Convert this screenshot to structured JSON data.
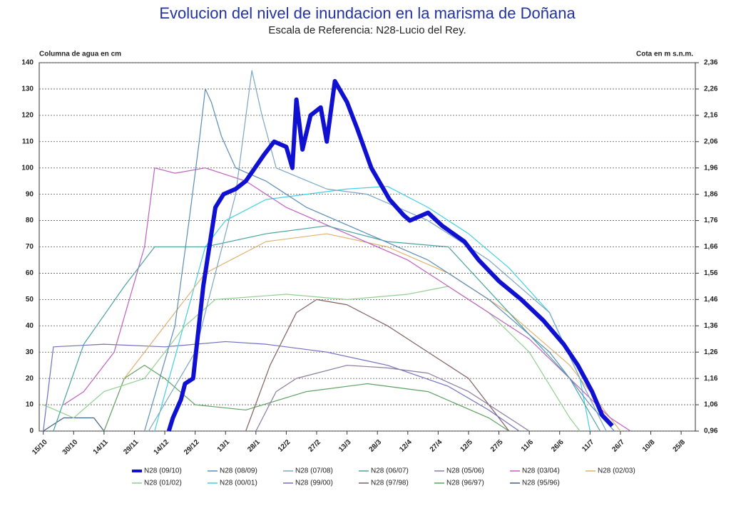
{
  "chart_data": {
    "type": "line",
    "title": "Evolucion del nivel de inundacion en la marisma de Doñana",
    "subtitle": "Escala de Referencia: N28-Lucio del Rey.",
    "ylabel": "Columna de agua en cm",
    "y2label": "Cota en m s.n.m.",
    "xlim": [
      -2,
      322
    ],
    "ylim": [
      0,
      140
    ],
    "y2lim": [
      0.96,
      2.36
    ],
    "grid": true,
    "xticks": [
      {
        "value": 0,
        "label": "15/10"
      },
      {
        "value": 15,
        "label": "30/10"
      },
      {
        "value": 30,
        "label": "14/11"
      },
      {
        "value": 45,
        "label": "29/11"
      },
      {
        "value": 60,
        "label": "14/12"
      },
      {
        "value": 75,
        "label": "29/12"
      },
      {
        "value": 90,
        "label": "13/1"
      },
      {
        "value": 105,
        "label": "28/1"
      },
      {
        "value": 120,
        "label": "12/2"
      },
      {
        "value": 135,
        "label": "27/2"
      },
      {
        "value": 150,
        "label": "13/3"
      },
      {
        "value": 165,
        "label": "28/3"
      },
      {
        "value": 180,
        "label": "12/4"
      },
      {
        "value": 195,
        "label": "27/4"
      },
      {
        "value": 210,
        "label": "12/5"
      },
      {
        "value": 225,
        "label": "27/5"
      },
      {
        "value": 240,
        "label": "11/6"
      },
      {
        "value": 255,
        "label": "26/6"
      },
      {
        "value": 270,
        "label": "11/7"
      },
      {
        "value": 285,
        "label": "26/7"
      },
      {
        "value": 300,
        "label": "10/8"
      },
      {
        "value": 315,
        "label": "25/8"
      }
    ],
    "yticks": [
      0,
      10,
      20,
      30,
      40,
      50,
      60,
      70,
      80,
      90,
      100,
      110,
      120,
      130,
      140
    ],
    "y2ticks": [
      {
        "value": 0.96,
        "label": "0,96"
      },
      {
        "value": 1.06,
        "label": "1,06"
      },
      {
        "value": 1.16,
        "label": "1,16"
      },
      {
        "value": 1.26,
        "label": "1,26"
      },
      {
        "value": 1.36,
        "label": "1,36"
      },
      {
        "value": 1.46,
        "label": "1,46"
      },
      {
        "value": 1.56,
        "label": "1,56"
      },
      {
        "value": 1.66,
        "label": "1,66"
      },
      {
        "value": 1.76,
        "label": "1,76"
      },
      {
        "value": 1.86,
        "label": "1,86"
      },
      {
        "value": 1.96,
        "label": "1,96"
      },
      {
        "value": 2.06,
        "label": "2,06"
      },
      {
        "value": 2.16,
        "label": "2,16"
      },
      {
        "value": 2.26,
        "label": "2,26"
      },
      {
        "value": 2.36,
        "label": "2,36"
      }
    ],
    "series": [
      {
        "name": "N28 (09/10)",
        "color": "#1010d0",
        "x": [
          62,
          64,
          68,
          70,
          74,
          79,
          85,
          89,
          95,
          100,
          109,
          114,
          120,
          123,
          125,
          128,
          132,
          137,
          140,
          144,
          150,
          155,
          162,
          171,
          178,
          181,
          190,
          197,
          208,
          215,
          225,
          236,
          247,
          257,
          264,
          271,
          276,
          281
        ],
        "values": [
          0,
          5,
          12,
          18,
          20,
          55,
          85,
          90,
          92,
          95,
          105,
          110,
          108,
          100,
          126,
          107,
          120,
          123,
          110,
          133,
          125,
          115,
          100,
          88,
          82,
          80,
          83,
          78,
          72,
          65,
          57,
          50,
          42,
          33,
          25,
          15,
          6,
          2
        ]
      },
      {
        "name": "N28 (08/09)",
        "color": "#5b8db8",
        "x": [
          50,
          65,
          72,
          77,
          80,
          83,
          88,
          95,
          110,
          130,
          160,
          190,
          220,
          250,
          270,
          282
        ],
        "values": [
          0,
          40,
          80,
          110,
          130,
          125,
          112,
          100,
          95,
          85,
          75,
          65,
          50,
          30,
          10,
          0
        ]
      },
      {
        "name": "N28 (07/08)",
        "color": "#7aa6c2",
        "x": [
          52,
          75,
          95,
          103,
          108,
          115,
          140,
          160,
          190,
          220,
          250,
          265,
          278
        ],
        "values": [
          0,
          30,
          90,
          137,
          120,
          100,
          92,
          90,
          80,
          65,
          45,
          20,
          0
        ]
      },
      {
        "name": "N28 (06/07)",
        "color": "#4aa3a0",
        "x": [
          5,
          20,
          40,
          55,
          80,
          110,
          140,
          170,
          200,
          230,
          260,
          275
        ],
        "values": [
          0,
          33,
          55,
          70,
          70,
          75,
          78,
          72,
          70,
          45,
          20,
          0
        ]
      },
      {
        "name": "N28 (05/06)",
        "color": "#8a7aa0",
        "x": [
          105,
          115,
          125,
          150,
          170,
          190,
          210,
          230,
          240
        ],
        "values": [
          0,
          15,
          20,
          25,
          24,
          22,
          15,
          5,
          0
        ]
      },
      {
        "name": "N28 (03/04)",
        "color": "#c060c0",
        "x": [
          10,
          20,
          35,
          50,
          55,
          65,
          80,
          100,
          120,
          150,
          180,
          210,
          240,
          260,
          280,
          290
        ],
        "values": [
          10,
          15,
          30,
          70,
          100,
          98,
          100,
          95,
          85,
          75,
          65,
          50,
          35,
          20,
          5,
          0
        ]
      },
      {
        "name": "N28 (02/03)",
        "color": "#e0b070",
        "x": [
          40,
          60,
          80,
          110,
          140,
          170,
          200,
          230,
          260,
          275,
          285
        ],
        "values": [
          20,
          40,
          60,
          72,
          75,
          70,
          60,
          45,
          25,
          10,
          0
        ]
      },
      {
        "name": "N28 (01/02)",
        "color": "#90d090",
        "x": [
          0,
          15,
          30,
          50,
          70,
          85,
          120,
          150,
          180,
          200,
          220,
          240,
          260,
          265
        ],
        "values": [
          10,
          5,
          15,
          20,
          40,
          50,
          52,
          50,
          52,
          55,
          45,
          30,
          5,
          0
        ]
      },
      {
        "name": "N28 (00/01)",
        "color": "#40d0e0",
        "x": [
          55,
          80,
          90,
          110,
          130,
          150,
          170,
          190,
          210,
          230,
          250,
          265,
          270
        ],
        "values": [
          0,
          70,
          80,
          88,
          90,
          92,
          93,
          85,
          75,
          62,
          45,
          20,
          0
        ]
      },
      {
        "name": "N28 (99/00)",
        "color": "#7070c0",
        "x": [
          0,
          5,
          30,
          60,
          90,
          110,
          140,
          170,
          200,
          220,
          235
        ],
        "values": [
          0,
          32,
          33,
          32,
          34,
          33,
          30,
          25,
          17,
          8,
          0
        ]
      },
      {
        "name": "N28 (97/98)",
        "color": "#806060",
        "x": [
          100,
          112,
          125,
          135,
          150,
          170,
          190,
          210,
          225,
          230
        ],
        "values": [
          0,
          25,
          45,
          50,
          48,
          40,
          30,
          20,
          5,
          0
        ]
      },
      {
        "name": "N28 (96/97)",
        "color": "#60a060",
        "x": [
          30,
          40,
          50,
          60,
          75,
          100,
          130,
          160,
          190,
          220,
          230
        ],
        "values": [
          0,
          20,
          25,
          20,
          10,
          8,
          15,
          18,
          15,
          5,
          0
        ]
      },
      {
        "name": "N28 (95/96)",
        "color": "#406080",
        "x": [
          0,
          10,
          25,
          30
        ],
        "values": [
          0,
          5,
          5,
          0
        ]
      }
    ]
  }
}
